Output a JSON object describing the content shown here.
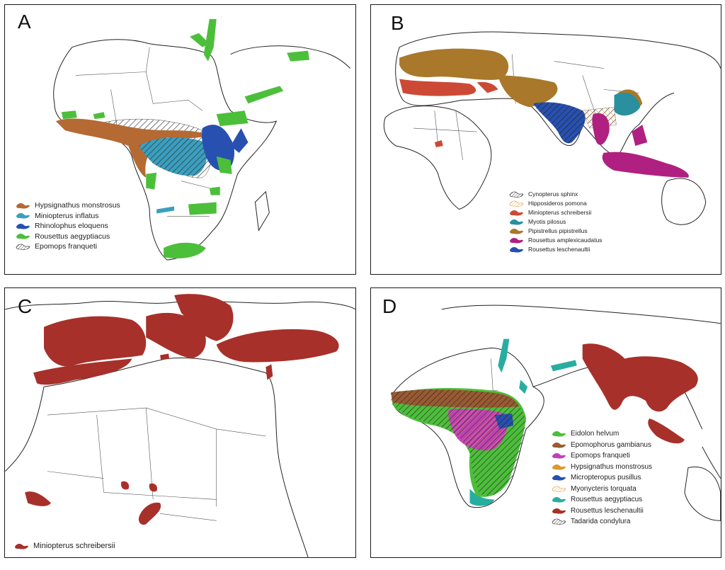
{
  "colors": {
    "brown": "#b56a33",
    "light_blue": "#3a9fbf",
    "dark_blue": "#2750b0",
    "green": "#4cbf3a",
    "red": "#cc4a35",
    "dark_red": "#a8302a",
    "teal": "#2a8f9f",
    "ochre": "#a9782a",
    "magenta": "#b02080",
    "violet": "#c23fb8",
    "gold": "#d99a2a",
    "sea_green": "#27aea0"
  },
  "panels": [
    {
      "label": "A",
      "legend": [
        {
          "name": "Hypsignathus monstrosus",
          "color": "#b56a33",
          "hatched": false
        },
        {
          "name": "Miniopterus inflatus",
          "color": "#3a9fbf",
          "hatched": false
        },
        {
          "name": "Rhinolophus eloquens",
          "color": "#2750b0",
          "hatched": false
        },
        {
          "name": "Rousettus aegyptiacus",
          "color": "#4cbf3a",
          "hatched": false
        },
        {
          "name": "Epomops franqueti",
          "color": "#ffffff",
          "hatched": true
        }
      ]
    },
    {
      "label": "B",
      "legend": [
        {
          "name": "Cynopterus sphinx",
          "color": "#ffffff",
          "hatched": true
        },
        {
          "name": "Hipposideros pomona",
          "color": "#ffffff",
          "hatched": true,
          "hatch_color": "#e0a040"
        },
        {
          "name": "Miniopterus schreibersii",
          "color": "#cc4a35",
          "hatched": false
        },
        {
          "name": "Myotis pilosus",
          "color": "#2a8f9f",
          "hatched": false
        },
        {
          "name": "Pipistrellus pipistrellus",
          "color": "#a9782a",
          "hatched": false
        },
        {
          "name": "Rousettus amplexicaudatus",
          "color": "#b02080",
          "hatched": false
        },
        {
          "name": "Rousettus leschenaultii",
          "color": "#2750b0",
          "hatched": false
        }
      ]
    },
    {
      "label": "C",
      "legend": [
        {
          "name": "Miniopterus schreibersii",
          "color": "#a8302a",
          "hatched": false
        }
      ]
    },
    {
      "label": "D",
      "legend": [
        {
          "name": "Eidolon helvum",
          "color": "#4cbf3a",
          "hatched": false
        },
        {
          "name": "Epomophorus gambianus",
          "color": "#9a5a30",
          "hatched": false
        },
        {
          "name": "Epomops franqueti",
          "color": "#c23fb8",
          "hatched": false
        },
        {
          "name": "Hypsignathus monstrosus",
          "color": "#d99a2a",
          "hatched": false
        },
        {
          "name": "Micropteropus pusillus",
          "color": "#2750b0",
          "hatched": false
        },
        {
          "name": "Myonycteris torquata",
          "color": "#ffffff",
          "hatched": true,
          "hatch_color": "#e0a040"
        },
        {
          "name": "Rousettus aegyptiacus",
          "color": "#27aea0",
          "hatched": false
        },
        {
          "name": "Rousettus leschenaultii",
          "color": "#a8302a",
          "hatched": false
        },
        {
          "name": "Tadarida condylura",
          "color": "#ffffff",
          "hatched": true
        }
      ]
    }
  ]
}
